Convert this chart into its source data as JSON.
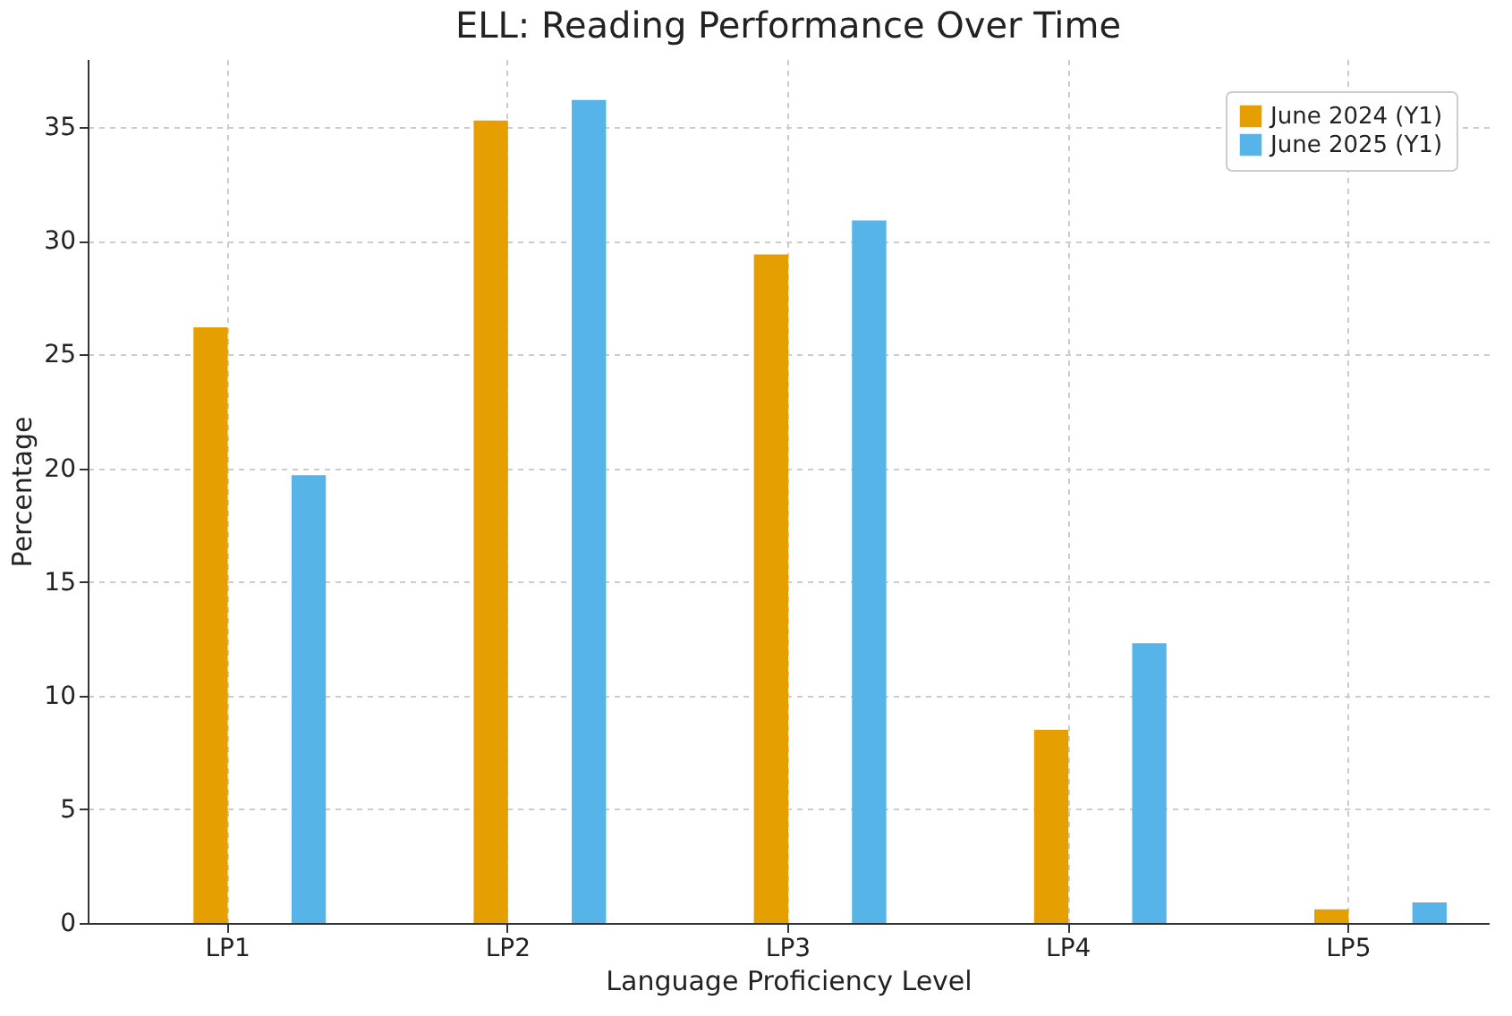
{
  "chart_data": {
    "type": "bar",
    "title": "ELL: Reading Performance Over Time",
    "xlabel": "Language Proficiency Level",
    "ylabel": "Percentage",
    "categories": [
      "LP1",
      "LP2",
      "LP3",
      "LP4",
      "LP5"
    ],
    "series": [
      {
        "name": "June 2024 (Y1)",
        "color": "#e69f00",
        "values": [
          26.2,
          35.3,
          29.4,
          8.5,
          0.6
        ]
      },
      {
        "name": "June 2025 (Y1)",
        "color": "#56b4e9",
        "values": [
          19.7,
          36.2,
          30.9,
          12.3,
          0.9
        ]
      }
    ],
    "ylim": [
      0,
      38
    ],
    "yticks": [
      0,
      5,
      10,
      15,
      20,
      25,
      30,
      35
    ],
    "grid": true,
    "legend": "top right"
  }
}
